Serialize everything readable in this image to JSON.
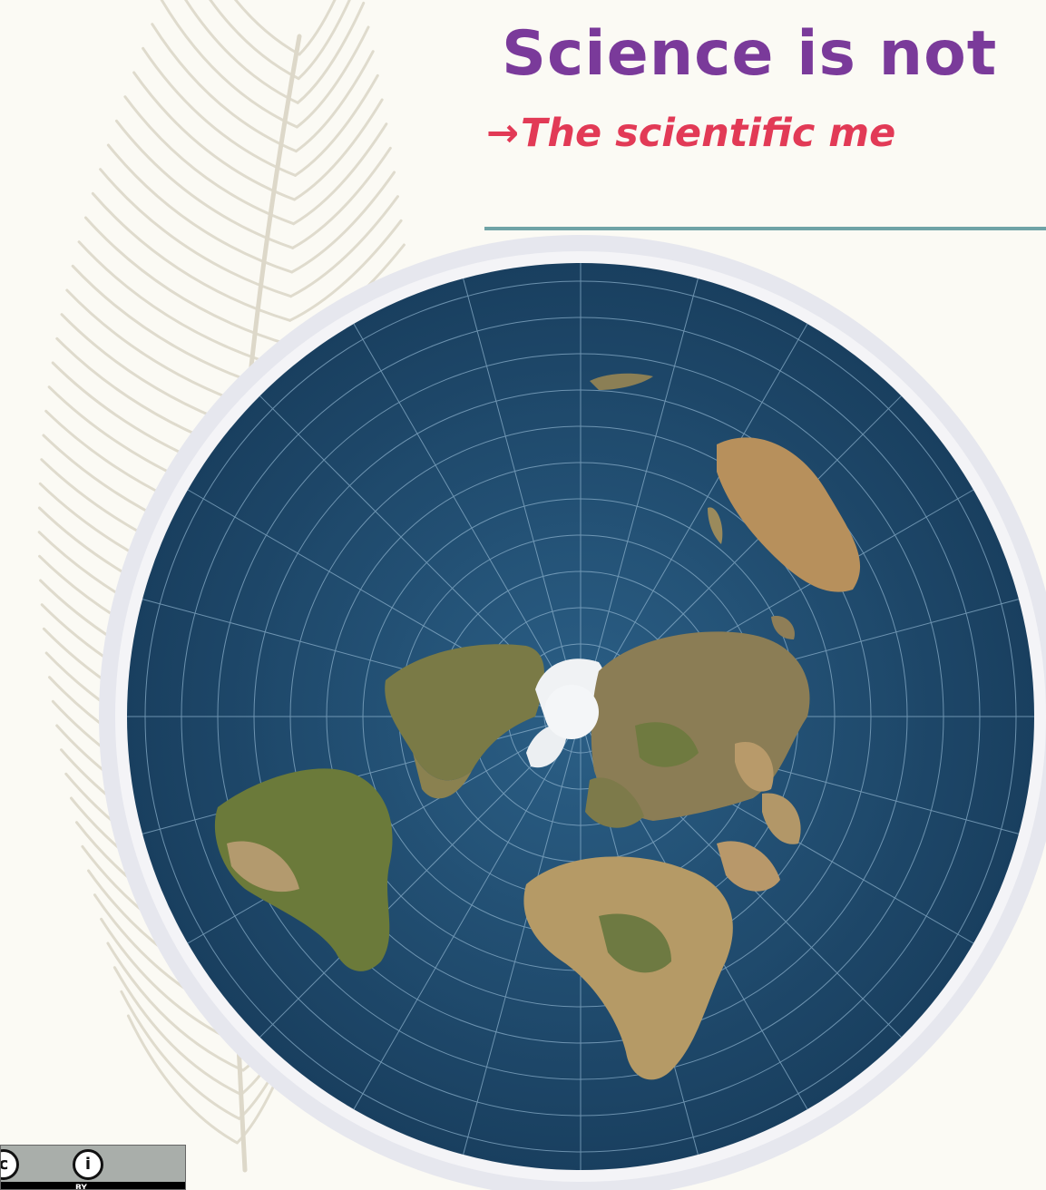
{
  "slide": {
    "title": "Science is not",
    "subtitle_arrow": "→",
    "subtitle": "The scientific me",
    "accent_title": "#7a3a9a",
    "accent_subtitle": "#e23a56",
    "rule_color": "#6fa3a6"
  },
  "image": {
    "icon": "azimuthal-equidistant-world-map"
  },
  "license_badge": {
    "cc_glyph": "c",
    "by_glyph": "i",
    "by_text": "BY",
    "icons": [
      "cc-icon",
      "person-icon"
    ]
  }
}
